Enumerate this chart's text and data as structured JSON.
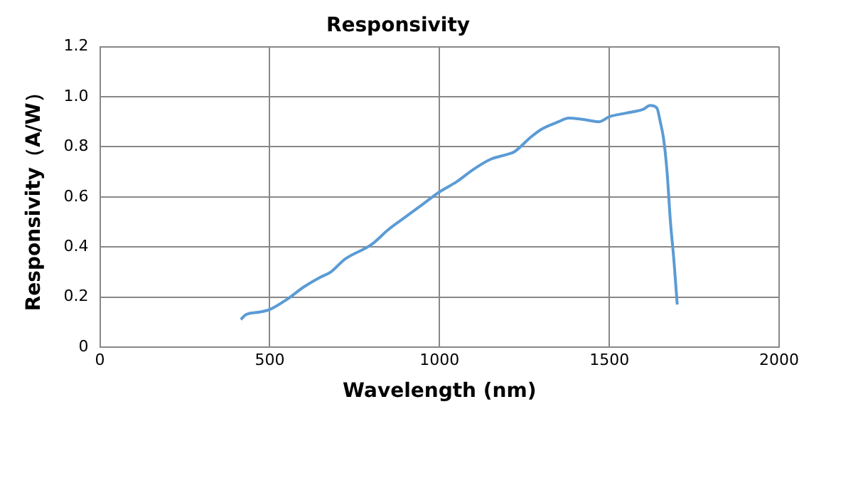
{
  "chart_data": {
    "type": "line",
    "title": "Responsivity",
    "xlabel": "Wavelength (nm)",
    "ylabel": "Responsivity（A/W）",
    "series": [
      {
        "color": "#5b9bd5",
        "x": [
          415,
          430,
          470,
          500,
          550,
          600,
          650,
          680,
          720,
          800,
          850,
          900,
          950,
          1000,
          1050,
          1100,
          1150,
          1200,
          1220,
          1270,
          1300,
          1350,
          1380,
          1420,
          1470,
          1500,
          1550,
          1600,
          1620,
          1640,
          1650,
          1660,
          1670,
          1680,
          1690,
          1700
        ],
        "values": [
          0.11,
          0.13,
          0.14,
          0.15,
          0.19,
          0.24,
          0.28,
          0.3,
          0.35,
          0.41,
          0.47,
          0.52,
          0.57,
          0.62,
          0.66,
          0.71,
          0.75,
          0.77,
          0.78,
          0.84,
          0.87,
          0.9,
          0.915,
          0.91,
          0.9,
          0.92,
          0.935,
          0.95,
          0.965,
          0.955,
          0.9,
          0.83,
          0.7,
          0.5,
          0.35,
          0.17
        ]
      }
    ],
    "xlim": [
      0,
      2000
    ],
    "xticks": [
      0,
      500,
      1000,
      1500,
      2000
    ],
    "ylim": [
      0,
      1.2
    ],
    "yticks": [
      0,
      0.2,
      0.4,
      0.6,
      0.8,
      {
        "value": 1,
        "label": "1.0"
      },
      1.2
    ],
    "grid": true,
    "marker": "none",
    "line_style": "solid"
  }
}
